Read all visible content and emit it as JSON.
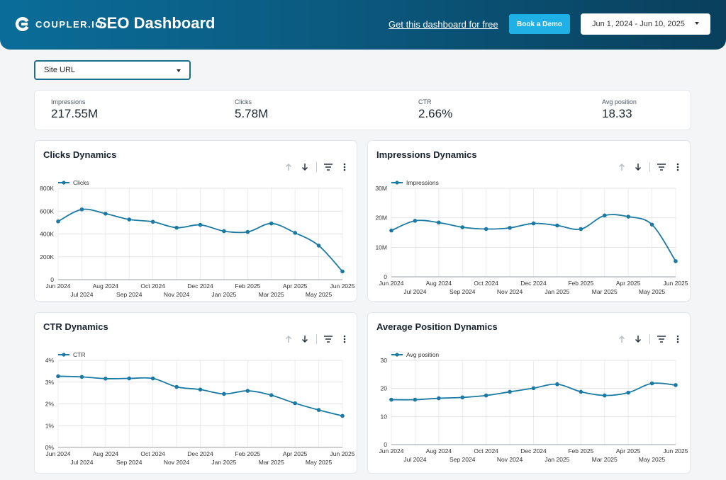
{
  "header": {
    "logo_text": "COUPLER.IO",
    "title": "SEO Dashboard",
    "free_link": "Get this dashboard for free",
    "demo_button": "Book a Demo",
    "date_range": "Jun 1, 2024 - Jun 10, 2025",
    "colors": {
      "gradient_start": "#0a6d99",
      "gradient_end": "#093f5c",
      "demo_button": "#1fb1e6"
    }
  },
  "filter": {
    "label": "Site URL"
  },
  "kpis": [
    {
      "label": "Impressions",
      "value": "217.55M"
    },
    {
      "label": "Clicks",
      "value": "5.78M"
    },
    {
      "label": "CTR",
      "value": "2.66%"
    },
    {
      "label": "Avg position",
      "value": "18.33"
    }
  ],
  "toolbar_icons": [
    "arrow-up-icon",
    "arrow-down-icon",
    "filter-icon",
    "more-vert-icon"
  ],
  "charts": {
    "clicks": {
      "title": "Clicks Dynamics"
    },
    "impressions": {
      "title": "Impressions Dynamics"
    },
    "ctr": {
      "title": "CTR Dynamics"
    },
    "position": {
      "title": "Average Position Dynamics"
    }
  },
  "chart_data": [
    {
      "id": "clicks",
      "type": "line",
      "title": "Clicks Dynamics",
      "series": [
        {
          "name": "Clicks",
          "color": "#1a7aa3",
          "values": [
            510000,
            615000,
            578000,
            527000,
            507000,
            455000,
            480000,
            425000,
            418000,
            492000,
            410000,
            298000,
            72000
          ]
        }
      ],
      "y_ticks": [
        "0",
        "200K",
        "400K",
        "600K",
        "800K"
      ],
      "ylim": [
        0,
        800000
      ],
      "x_ticks_top": [
        "Jun 2024",
        "Aug 2024",
        "Oct 2024",
        "Dec 2024",
        "Feb 2025",
        "Apr 2025",
        "Jun 2025"
      ],
      "x_ticks_bottom": [
        "Jul 2024",
        "Sep 2024",
        "Nov 2024",
        "Jan 2025",
        "Mar 2025",
        "May 2025"
      ],
      "grid": true,
      "legend": "top-left"
    },
    {
      "id": "impressions",
      "type": "line",
      "title": "Impressions Dynamics",
      "series": [
        {
          "name": "Impressions",
          "color": "#1a7aa3",
          "values": [
            15700000,
            19000000,
            18400000,
            16800000,
            16200000,
            16600000,
            18100000,
            17400000,
            16200000,
            20800000,
            20400000,
            17700000,
            5300000
          ]
        }
      ],
      "y_ticks": [
        "0",
        "10M",
        "20M",
        "30M"
      ],
      "ylim": [
        0,
        30000000
      ],
      "x_ticks_top": [
        "Jun 2024",
        "Aug 2024",
        "Oct 2024",
        "Dec 2024",
        "Feb 2025",
        "Apr 2025",
        "Jun 2025"
      ],
      "x_ticks_bottom": [
        "Jul 2024",
        "Sep 2024",
        "Nov 2024",
        "Jan 2025",
        "Mar 2025",
        "May 2025"
      ],
      "grid": true,
      "legend": "top-left"
    },
    {
      "id": "ctr",
      "type": "line",
      "title": "CTR Dynamics",
      "series": [
        {
          "name": "CTR",
          "color": "#1a7aa3",
          "values": [
            3.27,
            3.24,
            3.16,
            3.17,
            3.17,
            2.78,
            2.66,
            2.46,
            2.6,
            2.4,
            2.03,
            1.72,
            1.45
          ]
        }
      ],
      "y_ticks": [
        "0%",
        "1%",
        "2%",
        "3%",
        "4%"
      ],
      "ylim": [
        0,
        4
      ],
      "x_ticks_top": [
        "Jun 2024",
        "Aug 2024",
        "Oct 2024",
        "Dec 2024",
        "Feb 2025",
        "Apr 2025",
        "Jun 2025"
      ],
      "x_ticks_bottom": [
        "Jul 2024",
        "Sep 2024",
        "Nov 2024",
        "Jan 2025",
        "Mar 2025",
        "May 2025"
      ],
      "grid": true,
      "legend": "top-left"
    },
    {
      "id": "position",
      "type": "line",
      "title": "Average Position Dynamics",
      "series": [
        {
          "name": "Avg position",
          "color": "#1a7aa3",
          "values": [
            16.0,
            16.0,
            16.5,
            16.8,
            17.5,
            18.8,
            20.1,
            21.5,
            18.8,
            17.5,
            18.5,
            21.8,
            21.2
          ]
        }
      ],
      "y_ticks": [
        "0",
        "10",
        "20",
        "30"
      ],
      "ylim": [
        0,
        30
      ],
      "x_ticks_top": [
        "Jun 2024",
        "Aug 2024",
        "Oct 2024",
        "Dec 2024",
        "Feb 2025",
        "Apr 2025",
        "Jun 2025"
      ],
      "x_ticks_bottom": [
        "Jul 2024",
        "Sep 2024",
        "Nov 2024",
        "Jan 2025",
        "Mar 2025",
        "May 2025"
      ],
      "grid": true,
      "legend": "top-left"
    }
  ]
}
